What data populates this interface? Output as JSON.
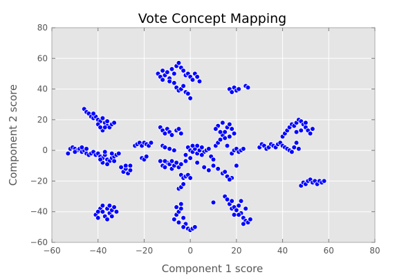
{
  "chart_data": {
    "type": "scatter",
    "title": "Vote Concept Mapping",
    "xlabel": "Component 1 score",
    "ylabel": "Component 2 score",
    "xlim": [
      -60,
      80
    ],
    "ylim": [
      -60,
      80
    ],
    "xticks": [
      -60,
      -40,
      -20,
      0,
      20,
      40,
      60,
      80
    ],
    "yticks": [
      -60,
      -40,
      -20,
      0,
      20,
      40,
      60,
      80
    ],
    "tick_labels_x": [
      "−60",
      "−40",
      "−20",
      "0",
      "20",
      "40",
      "60",
      "80"
    ],
    "tick_labels_y": [
      "−60",
      "−40",
      "−20",
      "0",
      "20",
      "40",
      "60",
      "80"
    ],
    "grid": true,
    "background_color": "#e5e5e5",
    "marker_color": "#0000ff",
    "marker_edge": "#ffffff",
    "points": [
      [
        -53,
        -2
      ],
      [
        -52,
        1
      ],
      [
        -51,
        2
      ],
      [
        -50,
        1
      ],
      [
        -49,
        0
      ],
      [
        -48,
        1
      ],
      [
        -47,
        -1
      ],
      [
        -46,
        0
      ],
      [
        -45,
        -2
      ],
      [
        -44,
        -3
      ],
      [
        -43,
        -2
      ],
      [
        -42,
        -1
      ],
      [
        -41,
        -3
      ],
      [
        -50,
        -1
      ],
      [
        -47,
        2
      ],
      [
        -45,
        1
      ],
      [
        -46,
        27
      ],
      [
        -45,
        25
      ],
      [
        -44,
        24
      ],
      [
        -43,
        22
      ],
      [
        -42,
        21
      ],
      [
        -41,
        22
      ],
      [
        -40,
        20
      ],
      [
        -39,
        19
      ],
      [
        -38,
        21
      ],
      [
        -37,
        18
      ],
      [
        -36,
        16
      ],
      [
        -35,
        15
      ],
      [
        -34,
        17
      ],
      [
        -38,
        13
      ],
      [
        -37,
        15
      ],
      [
        -36,
        19
      ],
      [
        -40,
        17
      ],
      [
        -42,
        24
      ],
      [
        -33,
        18
      ],
      [
        -39,
        15
      ],
      [
        -40,
        -2
      ],
      [
        -39,
        -4
      ],
      [
        -38,
        -5
      ],
      [
        -37,
        -3
      ],
      [
        -36,
        -6
      ],
      [
        -35,
        -7
      ],
      [
        -34,
        -5
      ],
      [
        -33,
        -4
      ],
      [
        -32,
        -3
      ],
      [
        -31,
        -2
      ],
      [
        -38,
        -8
      ],
      [
        -36,
        -9
      ],
      [
        -34,
        -2
      ],
      [
        -37,
        -1
      ],
      [
        -33,
        -7
      ],
      [
        -39,
        -6
      ],
      [
        -29,
        -14
      ],
      [
        -28,
        -12
      ],
      [
        -27,
        -15
      ],
      [
        -26,
        -13
      ],
      [
        -30,
        -11
      ],
      [
        -28,
        -10
      ],
      [
        -26,
        -10
      ],
      [
        -41,
        -42
      ],
      [
        -40,
        -44
      ],
      [
        -39,
        -38
      ],
      [
        -38,
        -40
      ],
      [
        -37,
        -43
      ],
      [
        -36,
        -45
      ],
      [
        -35,
        -41
      ],
      [
        -34,
        -39
      ],
      [
        -33,
        -37
      ],
      [
        -32,
        -40
      ],
      [
        -38,
        -36
      ],
      [
        -36,
        -38
      ],
      [
        -34,
        -43
      ],
      [
        -40,
        -40
      ],
      [
        -35,
        -36
      ],
      [
        -24,
        3
      ],
      [
        -23,
        4
      ],
      [
        -22,
        5
      ],
      [
        -21,
        3
      ],
      [
        -20,
        5
      ],
      [
        -19,
        4
      ],
      [
        -18,
        3
      ],
      [
        -17,
        5
      ],
      [
        -21,
        -5
      ],
      [
        -20,
        -6
      ],
      [
        -19,
        -4
      ],
      [
        -13,
        15
      ],
      [
        -12,
        13
      ],
      [
        -11,
        11
      ],
      [
        -10,
        14
      ],
      [
        -9,
        12
      ],
      [
        -8,
        10
      ],
      [
        -6,
        13
      ],
      [
        -5,
        14
      ],
      [
        -4,
        11
      ],
      [
        -12,
        3
      ],
      [
        -11,
        2
      ],
      [
        -9,
        1
      ],
      [
        -7,
        0
      ],
      [
        -13,
        -7
      ],
      [
        -12,
        -10
      ],
      [
        -11,
        -11
      ],
      [
        -10,
        -8
      ],
      [
        -9,
        -9
      ],
      [
        -8,
        -12
      ],
      [
        -7,
        -10
      ],
      [
        -6,
        -8
      ],
      [
        -5,
        -11
      ],
      [
        -4,
        -9
      ],
      [
        -11,
        -7
      ],
      [
        -8,
        -7
      ],
      [
        -4,
        -16
      ],
      [
        -3,
        -18
      ],
      [
        -2,
        -17
      ],
      [
        -1,
        -16
      ],
      [
        0,
        -18
      ],
      [
        -5,
        -25
      ],
      [
        -4,
        -24
      ],
      [
        -3,
        -22
      ],
      [
        -14,
        50
      ],
      [
        -13,
        48
      ],
      [
        -12,
        46
      ],
      [
        -11,
        49
      ],
      [
        -10,
        51
      ],
      [
        -9,
        47
      ],
      [
        -8,
        53
      ],
      [
        -7,
        50
      ],
      [
        -6,
        55
      ],
      [
        -5,
        57
      ],
      [
        -4,
        54
      ],
      [
        -3,
        52
      ],
      [
        -2,
        49
      ],
      [
        -1,
        50
      ],
      [
        0,
        48
      ],
      [
        1,
        46
      ],
      [
        2,
        50
      ],
      [
        3,
        48
      ],
      [
        -6,
        41
      ],
      [
        -5,
        39
      ],
      [
        -4,
        40
      ],
      [
        -3,
        42
      ],
      [
        -2,
        38
      ],
      [
        -1,
        37
      ],
      [
        0,
        34
      ],
      [
        -9,
        45
      ],
      [
        -7,
        44
      ],
      [
        -12,
        52
      ],
      [
        4,
        45
      ],
      [
        17,
        40
      ],
      [
        18,
        38
      ],
      [
        19,
        41
      ],
      [
        20,
        39
      ],
      [
        21,
        40
      ],
      [
        24,
        42
      ],
      [
        25,
        41
      ],
      [
        -1,
        2
      ],
      [
        0,
        0
      ],
      [
        1,
        -1
      ],
      [
        2,
        1
      ],
      [
        3,
        -2
      ],
      [
        4,
        0
      ],
      [
        5,
        2
      ],
      [
        6,
        -1
      ],
      [
        7,
        0
      ],
      [
        8,
        1
      ],
      [
        3,
        3
      ],
      [
        5,
        -3
      ],
      [
        1,
        3
      ],
      [
        -2,
        -3
      ],
      [
        9,
        -4
      ],
      [
        10,
        -6
      ],
      [
        11,
        3
      ],
      [
        12,
        5
      ],
      [
        13,
        7
      ],
      [
        14,
        10
      ],
      [
        15,
        12
      ],
      [
        16,
        15
      ],
      [
        17,
        17
      ],
      [
        18,
        14
      ],
      [
        19,
        11
      ],
      [
        12,
        16
      ],
      [
        14,
        18
      ],
      [
        11,
        14
      ],
      [
        13,
        12
      ],
      [
        15,
        8
      ],
      [
        17,
        9
      ],
      [
        16,
        3
      ],
      [
        18,
        -2
      ],
      [
        19,
        0
      ],
      [
        20,
        1
      ],
      [
        21,
        -1
      ],
      [
        22,
        0
      ],
      [
        23,
        1
      ],
      [
        10,
        -10
      ],
      [
        12,
        -12
      ],
      [
        14,
        -15
      ],
      [
        16,
        -17
      ],
      [
        18,
        -18
      ],
      [
        17,
        -19
      ],
      [
        15,
        -14
      ],
      [
        20,
        -10
      ],
      [
        -2,
        -7
      ],
      [
        0,
        -5
      ],
      [
        3,
        -8
      ],
      [
        6,
        -11
      ],
      [
        8,
        -13
      ],
      [
        30,
        2
      ],
      [
        31,
        4
      ],
      [
        32,
        3
      ],
      [
        33,
        1
      ],
      [
        34,
        2
      ],
      [
        35,
        4
      ],
      [
        36,
        3
      ],
      [
        37,
        2
      ],
      [
        38,
        4
      ],
      [
        39,
        5
      ],
      [
        40,
        3
      ],
      [
        41,
        2
      ],
      [
        42,
        1
      ],
      [
        43,
        0
      ],
      [
        44,
        -1
      ],
      [
        45,
        2
      ],
      [
        46,
        5
      ],
      [
        47,
        1
      ],
      [
        40,
        9
      ],
      [
        41,
        11
      ],
      [
        42,
        13
      ],
      [
        43,
        15
      ],
      [
        44,
        17
      ],
      [
        45,
        16
      ],
      [
        46,
        18
      ],
      [
        47,
        20
      ],
      [
        48,
        19
      ],
      [
        49,
        17
      ],
      [
        50,
        15
      ],
      [
        51,
        13
      ],
      [
        52,
        11
      ],
      [
        53,
        14
      ],
      [
        48,
        13
      ],
      [
        50,
        18
      ],
      [
        46,
        12
      ],
      [
        48,
        -23
      ],
      [
        49,
        -21
      ],
      [
        50,
        -22
      ],
      [
        51,
        -20
      ],
      [
        52,
        -19
      ],
      [
        53,
        -21
      ],
      [
        54,
        -20
      ],
      [
        55,
        -22
      ],
      [
        56,
        -20
      ],
      [
        57,
        -21
      ],
      [
        58,
        -20
      ],
      [
        -7,
        -45
      ],
      [
        -6,
        -42
      ],
      [
        -5,
        -40
      ],
      [
        -4,
        -38
      ],
      [
        -3,
        -44
      ],
      [
        -2,
        -48
      ],
      [
        -1,
        -51
      ],
      [
        0,
        -52
      ],
      [
        1,
        -51
      ],
      [
        2,
        -50
      ],
      [
        -4,
        -35
      ],
      [
        -5,
        -47
      ],
      [
        -3,
        -50
      ],
      [
        -6,
        -37
      ],
      [
        10,
        -34
      ],
      [
        15,
        -30
      ],
      [
        16,
        -32
      ],
      [
        17,
        -35
      ],
      [
        18,
        -38
      ],
      [
        19,
        -37
      ],
      [
        20,
        -39
      ],
      [
        21,
        -36
      ],
      [
        22,
        -41
      ],
      [
        23,
        -44
      ],
      [
        24,
        -46
      ],
      [
        25,
        -47
      ],
      [
        26,
        -45
      ],
      [
        22,
        -33
      ],
      [
        24,
        -38
      ],
      [
        19,
        -42
      ],
      [
        18,
        -33
      ],
      [
        21,
        -42
      ],
      [
        23,
        -48
      ]
    ]
  }
}
